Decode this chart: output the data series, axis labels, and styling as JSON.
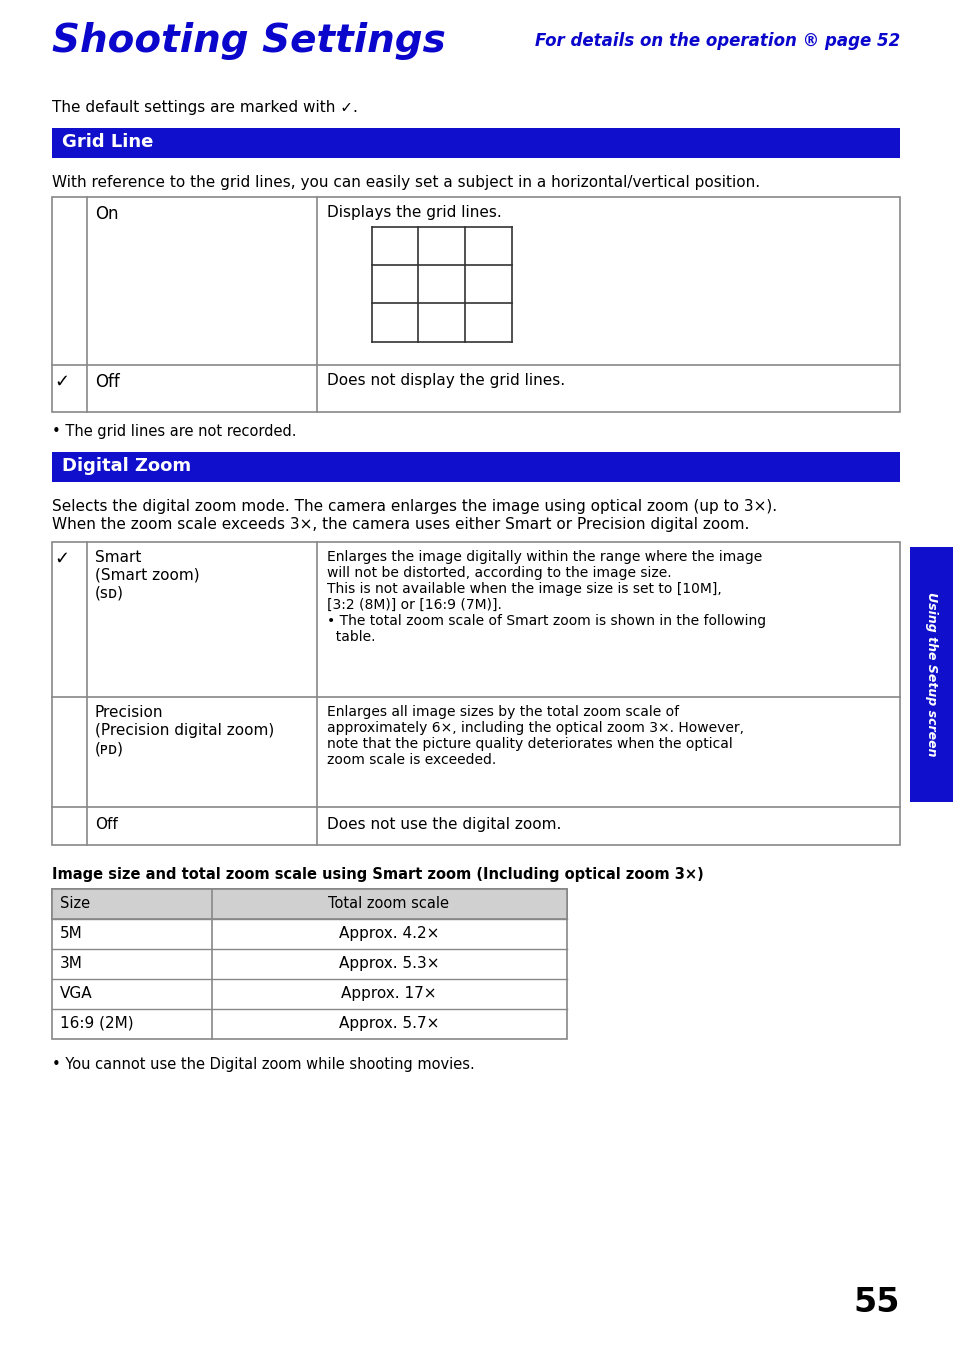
{
  "page_bg": "#ffffff",
  "title_text": "Shooting Settings",
  "title_color": "#0a06cc",
  "subtitle_text": "For details on the operation ® page 52",
  "subtitle_color": "#0a06cc",
  "default_settings_text": "The default settings are marked with ✓.",
  "section1_header": "Grid Line",
  "section1_header_bg": "#1010cc",
  "section1_header_text_color": "#ffffff",
  "section1_intro": "With reference to the grid lines, you can easily set a subject in a horizontal/vertical position.",
  "section2_header": "Digital Zoom",
  "section2_header_bg": "#1010cc",
  "section2_header_text_color": "#ffffff",
  "section2_intro_line1": "Selects the digital zoom mode. The camera enlarges the image using optical zoom (up to 3×).",
  "section2_intro_line2": "When the zoom scale exceeds 3×, the camera uses either Smart or Precision digital zoom.",
  "gridline_note": "• The grid lines are not recorded.",
  "digital_zoom_note": "• You cannot use the Digital zoom while shooting movies.",
  "sidebar_text": "Using the Setup screen",
  "sidebar_bg": "#1010cc",
  "page_number": "55",
  "zoom_table_title": "Image size and total zoom scale using Smart zoom (Including optical zoom 3×)",
  "zoom_table_headers": [
    "Size",
    "Total zoom scale"
  ],
  "zoom_table_rows": [
    [
      "5M",
      "Approx. 4.2×"
    ],
    [
      "3M",
      "Approx. 5.3×"
    ],
    [
      "VGA",
      "Approx. 17×"
    ],
    [
      "16:9 (2M)",
      "Approx. 5.7×"
    ]
  ],
  "text_color": "#000000",
  "table_border_color": "#888888",
  "smart_desc": [
    "Enlarges the image digitally within the range where the image",
    "will not be distorted, according to the image size.",
    "This is not available when the image size is set to [10M],",
    "[3:2 (8M)] or [16:9 (7M)].",
    "• The total zoom scale of Smart zoom is shown in the following",
    "  table."
  ],
  "prec_desc": [
    "Enlarges all image sizes by the total zoom scale of",
    "approximately 6×, including the optical zoom 3×. However,",
    "note that the picture quality deteriorates when the optical",
    "zoom scale is exceeded."
  ]
}
